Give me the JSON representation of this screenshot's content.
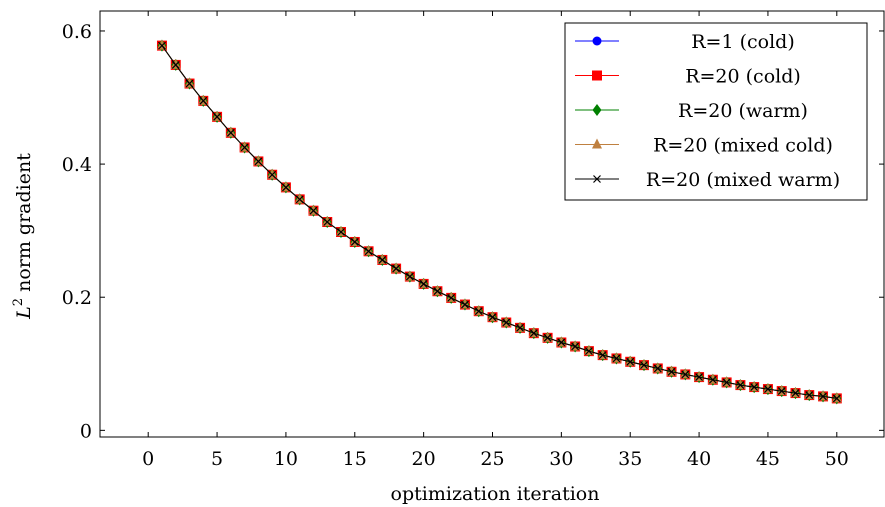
{
  "chart_data": {
    "type": "line",
    "title": "",
    "xlabel": "optimization iteration",
    "ylabel_main": "L",
    "ylabel_sup": "2",
    "ylabel_rest": " norm gradient",
    "xlim": [
      -3.5,
      53.5
    ],
    "ylim": [
      -0.01,
      0.63
    ],
    "xticks": [
      0,
      5,
      10,
      15,
      20,
      25,
      30,
      35,
      40,
      45,
      50
    ],
    "xtick_labels": [
      "0",
      "5",
      "10",
      "15",
      "20",
      "25",
      "30",
      "35",
      "40",
      "45",
      "50"
    ],
    "yticks": [
      0,
      0.2,
      0.4,
      0.6
    ],
    "ytick_labels": [
      "0",
      "0.2",
      "0.4",
      "0.6"
    ],
    "grid": false,
    "legend_position": "top-right",
    "x": [
      1,
      2,
      3,
      4,
      5,
      6,
      7,
      8,
      9,
      10,
      11,
      12,
      13,
      14,
      15,
      16,
      17,
      18,
      19,
      20,
      21,
      22,
      23,
      24,
      25,
      26,
      27,
      28,
      29,
      30,
      31,
      32,
      33,
      34,
      35,
      36,
      37,
      38,
      39,
      40,
      41,
      42,
      43,
      44,
      45,
      46,
      47,
      48,
      49,
      50
    ],
    "series": [
      {
        "name": "R=1 (cold)",
        "color": "#0000ff",
        "marker": "circle",
        "values": [
          0.578,
          0.549,
          0.521,
          0.495,
          0.471,
          0.447,
          0.425,
          0.404,
          0.384,
          0.365,
          0.347,
          0.33,
          0.313,
          0.298,
          0.283,
          0.269,
          0.256,
          0.243,
          0.231,
          0.22,
          0.209,
          0.199,
          0.189,
          0.179,
          0.17,
          0.162,
          0.154,
          0.146,
          0.139,
          0.132,
          0.126,
          0.119,
          0.113,
          0.108,
          0.103,
          0.098,
          0.093,
          0.088,
          0.084,
          0.08,
          0.076,
          0.072,
          0.068,
          0.065,
          0.062,
          0.059,
          0.056,
          0.053,
          0.051,
          0.048
        ]
      },
      {
        "name": "R=20 (cold)",
        "color": "#ff0000",
        "marker": "square",
        "values": [
          0.578,
          0.549,
          0.521,
          0.495,
          0.471,
          0.447,
          0.425,
          0.404,
          0.384,
          0.365,
          0.347,
          0.33,
          0.313,
          0.298,
          0.283,
          0.269,
          0.256,
          0.243,
          0.231,
          0.22,
          0.209,
          0.199,
          0.189,
          0.179,
          0.17,
          0.162,
          0.154,
          0.146,
          0.139,
          0.132,
          0.126,
          0.119,
          0.113,
          0.108,
          0.103,
          0.098,
          0.093,
          0.088,
          0.084,
          0.08,
          0.076,
          0.072,
          0.068,
          0.065,
          0.062,
          0.059,
          0.056,
          0.053,
          0.051,
          0.048
        ]
      },
      {
        "name": "R=20 (warm)",
        "color": "#008000",
        "marker": "diamond",
        "values": [
          0.578,
          0.549,
          0.521,
          0.495,
          0.471,
          0.447,
          0.425,
          0.404,
          0.384,
          0.365,
          0.347,
          0.33,
          0.313,
          0.298,
          0.283,
          0.269,
          0.256,
          0.243,
          0.231,
          0.22,
          0.209,
          0.199,
          0.189,
          0.179,
          0.17,
          0.162,
          0.154,
          0.146,
          0.139,
          0.132,
          0.126,
          0.119,
          0.113,
          0.108,
          0.103,
          0.098,
          0.093,
          0.088,
          0.084,
          0.08,
          0.076,
          0.072,
          0.068,
          0.065,
          0.062,
          0.059,
          0.056,
          0.053,
          0.051,
          0.048
        ]
      },
      {
        "name": "R=20 (mixed cold)",
        "color": "#bf8040",
        "marker": "triangle",
        "values": [
          0.578,
          0.549,
          0.521,
          0.495,
          0.471,
          0.447,
          0.425,
          0.404,
          0.384,
          0.365,
          0.347,
          0.33,
          0.313,
          0.298,
          0.283,
          0.269,
          0.256,
          0.243,
          0.231,
          0.22,
          0.209,
          0.199,
          0.189,
          0.179,
          0.17,
          0.162,
          0.154,
          0.146,
          0.139,
          0.132,
          0.126,
          0.119,
          0.113,
          0.108,
          0.103,
          0.098,
          0.093,
          0.088,
          0.084,
          0.08,
          0.076,
          0.072,
          0.068,
          0.065,
          0.062,
          0.059,
          0.056,
          0.053,
          0.051,
          0.048
        ]
      },
      {
        "name": "R=20 (mixed warm)",
        "color": "#000000",
        "marker": "x",
        "values": [
          0.578,
          0.549,
          0.521,
          0.495,
          0.471,
          0.447,
          0.425,
          0.404,
          0.384,
          0.365,
          0.347,
          0.33,
          0.313,
          0.298,
          0.283,
          0.269,
          0.256,
          0.243,
          0.231,
          0.22,
          0.209,
          0.199,
          0.189,
          0.179,
          0.17,
          0.162,
          0.154,
          0.146,
          0.139,
          0.132,
          0.126,
          0.119,
          0.113,
          0.108,
          0.103,
          0.098,
          0.093,
          0.088,
          0.084,
          0.08,
          0.076,
          0.072,
          0.068,
          0.065,
          0.062,
          0.059,
          0.056,
          0.053,
          0.051,
          0.048
        ]
      }
    ]
  }
}
